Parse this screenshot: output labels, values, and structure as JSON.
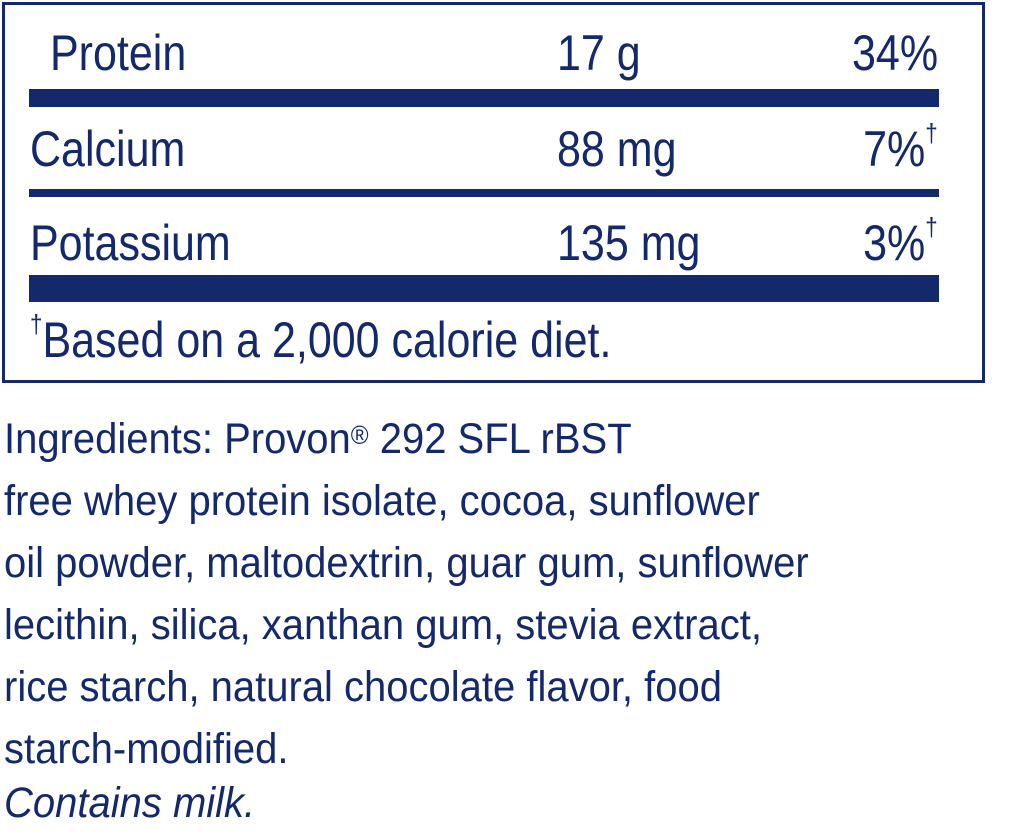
{
  "nutrients": [
    {
      "name": "Protein",
      "amount": "17 g",
      "dv": "34%",
      "dagger": ""
    },
    {
      "name": "Calcium",
      "amount": "88 mg",
      "dv": "7%",
      "dagger": "†"
    },
    {
      "name": "Potassium",
      "amount": "135 mg",
      "dv": "3%",
      "dagger": "†"
    }
  ],
  "footnote": {
    "mark": "†",
    "text": "Based on a 2,000 calorie diet."
  },
  "ingredients": {
    "label": "Ingredients: Provon",
    "registered": "®",
    "lines": [
      " 292 SFL rBST",
      "free whey protein isolate, cocoa, sunflower",
      "oil powder, maltodextrin, guar gum, sunflower",
      "lecithin, silica, xanthan gum, stevia extract,",
      "rice starch, natural chocolate flavor, food",
      "starch-modified."
    ],
    "allergen": "Contains milk."
  },
  "colors": {
    "text": "#13296b",
    "background": "#ffffff"
  }
}
